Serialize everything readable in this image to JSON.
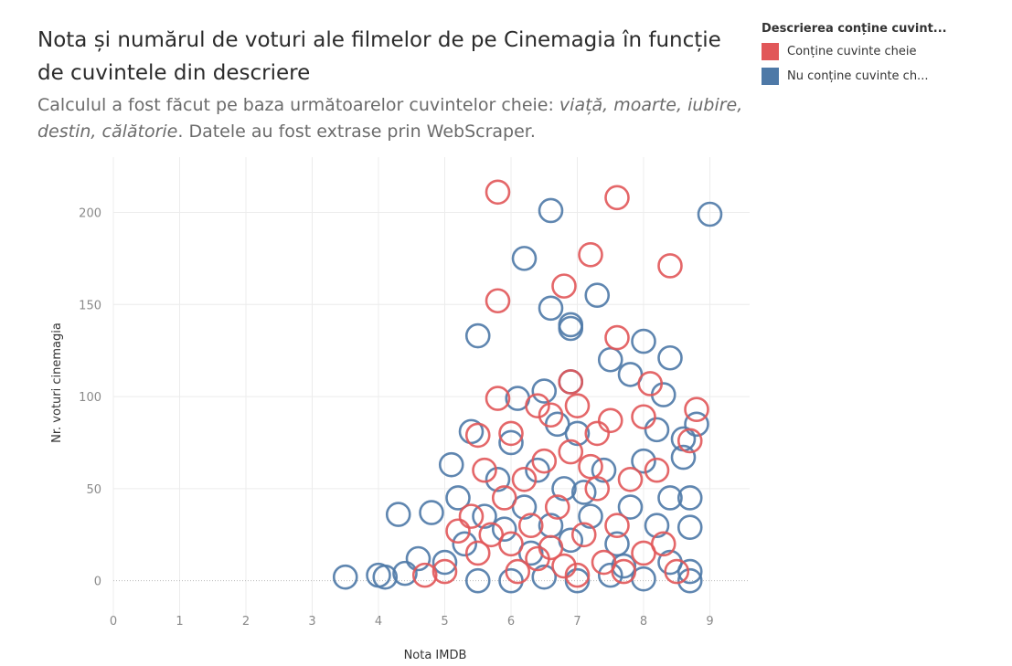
{
  "title": "Nota și numărul de voturi ale filmelor de pe Cinemagia în funcție de cuvintele din descriere",
  "subtitle": {
    "prefix": "Calculul a fost făcut pe baza următoarelor cuvintelor cheie: ",
    "keywords": "viață, moarte, iubire, destin, călătorie",
    "suffix": ". Datele au fost extrase prin WebScraper."
  },
  "legend": {
    "title": "Descrierea conține cuvint...",
    "items": [
      {
        "label": "Conține cuvinte cheie",
        "color": "#e15759"
      },
      {
        "label": "Nu conține cuvinte ch...",
        "color": "#4e79a7"
      }
    ]
  },
  "chart_data": {
    "type": "scatter",
    "xlabel": "Nota IMDB",
    "ylabel": "Nr. voturi cinemagia",
    "xlim": [
      0,
      9.6
    ],
    "ylim": [
      -20,
      230
    ],
    "xticks": [
      0,
      1,
      2,
      3,
      4,
      5,
      6,
      7,
      8,
      9
    ],
    "yticks": [
      0,
      50,
      100,
      150,
      200
    ],
    "grid": true,
    "marker": "open-circle",
    "series": [
      {
        "name": "Conține cuvinte cheie",
        "color": "#e15759",
        "points": [
          [
            5.8,
            211
          ],
          [
            7.6,
            208
          ],
          [
            7.2,
            177
          ],
          [
            6.8,
            160
          ],
          [
            8.4,
            171
          ],
          [
            5.8,
            152
          ],
          [
            7.6,
            132
          ],
          [
            5.8,
            99
          ],
          [
            8.1,
            107
          ],
          [
            6.9,
            108
          ],
          [
            8.8,
            93
          ],
          [
            8.7,
            76
          ],
          [
            8.0,
            89
          ],
          [
            7.5,
            87
          ],
          [
            5.5,
            79
          ],
          [
            5.6,
            60
          ],
          [
            6.4,
            95
          ],
          [
            6.6,
            90
          ],
          [
            7.0,
            95
          ],
          [
            7.3,
            80
          ],
          [
            8.2,
            60
          ],
          [
            5.2,
            27
          ],
          [
            5.4,
            35
          ],
          [
            4.7,
            3
          ],
          [
            5.0,
            5
          ],
          [
            5.5,
            15
          ],
          [
            5.9,
            45
          ],
          [
            6.0,
            20
          ],
          [
            6.2,
            55
          ],
          [
            6.3,
            30
          ],
          [
            6.5,
            65
          ],
          [
            6.7,
            40
          ],
          [
            6.9,
            70
          ],
          [
            7.1,
            25
          ],
          [
            7.3,
            50
          ],
          [
            7.4,
            10
          ],
          [
            7.6,
            30
          ],
          [
            7.8,
            55
          ],
          [
            8.0,
            15
          ],
          [
            8.3,
            20
          ],
          [
            8.5,
            5
          ],
          [
            6.1,
            5
          ],
          [
            6.4,
            12
          ],
          [
            6.8,
            8
          ],
          [
            7.0,
            3
          ],
          [
            7.7,
            5
          ],
          [
            5.7,
            25
          ],
          [
            6.0,
            80
          ],
          [
            6.6,
            18
          ],
          [
            7.2,
            62
          ]
        ]
      },
      {
        "name": "Nu conține cuvinte ch...",
        "color": "#4e79a7",
        "points": [
          [
            6.6,
            201
          ],
          [
            9.0,
            199
          ],
          [
            6.2,
            175
          ],
          [
            7.3,
            155
          ],
          [
            6.6,
            148
          ],
          [
            6.9,
            139
          ],
          [
            6.9,
            137
          ],
          [
            5.5,
            133
          ],
          [
            8.0,
            130
          ],
          [
            8.4,
            121
          ],
          [
            7.5,
            120
          ],
          [
            7.8,
            112
          ],
          [
            6.9,
            108
          ],
          [
            6.5,
            103
          ],
          [
            8.3,
            101
          ],
          [
            6.1,
            99
          ],
          [
            8.8,
            85
          ],
          [
            8.6,
            77
          ],
          [
            8.2,
            82
          ],
          [
            8.6,
            67
          ],
          [
            8.7,
            45
          ],
          [
            8.4,
            45
          ],
          [
            8.7,
            29
          ],
          [
            8.7,
            5
          ],
          [
            8.7,
            0
          ],
          [
            5.1,
            63
          ],
          [
            5.4,
            81
          ],
          [
            5.2,
            45
          ],
          [
            4.8,
            37
          ],
          [
            4.3,
            36
          ],
          [
            4.6,
            12
          ],
          [
            4.0,
            3
          ],
          [
            3.5,
            2
          ],
          [
            4.1,
            2
          ],
          [
            4.4,
            4
          ],
          [
            5.0,
            10
          ],
          [
            5.3,
            20
          ],
          [
            5.6,
            35
          ],
          [
            5.8,
            55
          ],
          [
            6.0,
            75
          ],
          [
            6.2,
            40
          ],
          [
            6.4,
            60
          ],
          [
            6.6,
            30
          ],
          [
            6.8,
            50
          ],
          [
            7.0,
            80
          ],
          [
            7.2,
            35
          ],
          [
            7.4,
            60
          ],
          [
            7.6,
            20
          ],
          [
            7.8,
            40
          ],
          [
            8.0,
            65
          ],
          [
            8.2,
            30
          ],
          [
            8.4,
            10
          ],
          [
            5.5,
            0
          ],
          [
            6.0,
            0
          ],
          [
            6.5,
            2
          ],
          [
            7.0,
            0
          ],
          [
            7.5,
            3
          ],
          [
            8.0,
            1
          ],
          [
            6.3,
            15
          ],
          [
            6.9,
            22
          ],
          [
            7.7,
            8
          ],
          [
            5.9,
            28
          ],
          [
            7.1,
            48
          ],
          [
            6.7,
            85
          ]
        ]
      }
    ]
  }
}
